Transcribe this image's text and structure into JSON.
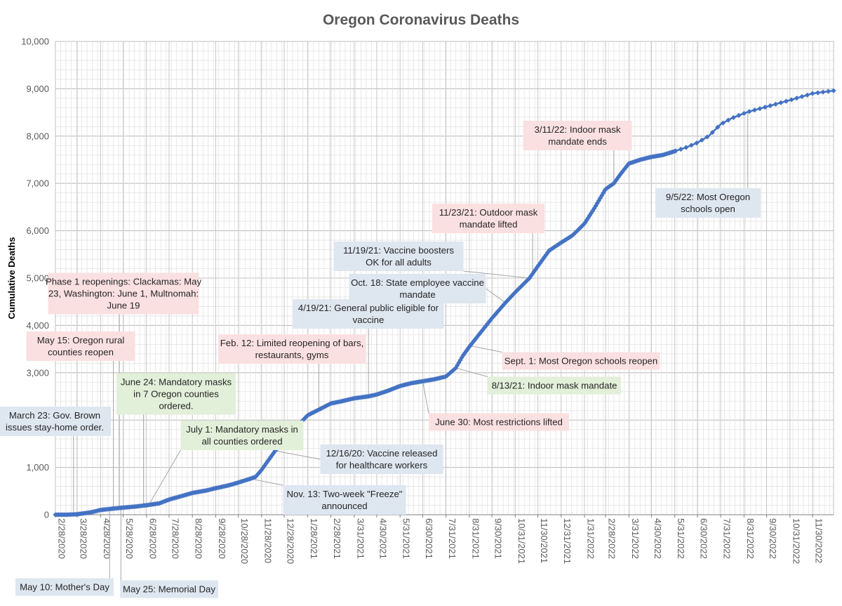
{
  "chart_data": {
    "type": "line",
    "title": "Oregon Coronavirus Deaths",
    "xlabel": "",
    "ylabel": "Cumulative Deaths",
    "ylim": [
      0,
      10000
    ],
    "xlim": [
      "2020-02-28",
      "2022-12-28"
    ],
    "grid": true,
    "legend": "none",
    "series_color": "#4472C4",
    "y_ticks": [
      0,
      1000,
      2000,
      3000,
      4000,
      5000,
      6000,
      7000,
      8000,
      9000,
      10000
    ],
    "y_tick_labels": [
      "0",
      "1,000",
      "2,000",
      "3,000",
      "4,000",
      "5,000",
      "6,000",
      "7,000",
      "8,000",
      "9,000",
      "10,000"
    ],
    "x_tick_labels": [
      "2/28/2020",
      "3/28/2020",
      "4/28/2020",
      "5/28/2020",
      "6/28/2020",
      "7/28/2020",
      "8/28/2020",
      "9/28/2020",
      "10/28/2020",
      "11/28/2020",
      "12/28/2020",
      "1/28/2021",
      "2/28/2021",
      "3/31/2021",
      "4/30/2021",
      "5/31/2021",
      "6/30/2021",
      "7/31/2021",
      "8/31/2021",
      "9/30/2021",
      "10/31/2021",
      "11/30/2021",
      "12/31/2021",
      "1/31/2022",
      "2/28/2022",
      "3/31/2022",
      "4/30/2022",
      "5/31/2022",
      "6/30/2022",
      "7/31/2022",
      "8/31/2022",
      "9/30/2022",
      "10/31/2022",
      "11/30/2022"
    ],
    "x_tick_dates": [
      "2020-02-28",
      "2020-03-28",
      "2020-04-28",
      "2020-05-28",
      "2020-06-28",
      "2020-07-28",
      "2020-08-28",
      "2020-09-28",
      "2020-10-28",
      "2020-11-28",
      "2020-12-28",
      "2021-01-28",
      "2021-02-28",
      "2021-03-31",
      "2021-04-30",
      "2021-05-31",
      "2021-06-30",
      "2021-07-31",
      "2021-08-31",
      "2021-09-30",
      "2021-10-31",
      "2021-11-30",
      "2021-12-31",
      "2022-01-31",
      "2022-02-28",
      "2022-03-31",
      "2022-04-30",
      "2022-05-31",
      "2022-06-30",
      "2022-07-31",
      "2022-08-31",
      "2022-09-30",
      "2022-10-31",
      "2022-11-30"
    ],
    "curve": [
      [
        "2020-02-28",
        0
      ],
      [
        "2020-03-14",
        0
      ],
      [
        "2020-03-28",
        10
      ],
      [
        "2020-04-15",
        50
      ],
      [
        "2020-04-28",
        100
      ],
      [
        "2020-05-15",
        130
      ],
      [
        "2020-05-28",
        150
      ],
      [
        "2020-06-15",
        175
      ],
      [
        "2020-06-28",
        200
      ],
      [
        "2020-07-15",
        240
      ],
      [
        "2020-07-28",
        320
      ],
      [
        "2020-08-15",
        400
      ],
      [
        "2020-08-28",
        460
      ],
      [
        "2020-09-15",
        510
      ],
      [
        "2020-09-28",
        560
      ],
      [
        "2020-10-15",
        620
      ],
      [
        "2020-10-28",
        680
      ],
      [
        "2020-11-13",
        760
      ],
      [
        "2020-11-20",
        800
      ],
      [
        "2020-11-28",
        950
      ],
      [
        "2020-12-07",
        1150
      ],
      [
        "2020-12-16",
        1350
      ],
      [
        "2020-12-28",
        1550
      ],
      [
        "2021-01-15",
        1880
      ],
      [
        "2021-01-28",
        2100
      ],
      [
        "2021-02-12",
        2220
      ],
      [
        "2021-02-28",
        2350
      ],
      [
        "2021-03-15",
        2400
      ],
      [
        "2021-03-31",
        2460
      ],
      [
        "2021-04-19",
        2500
      ],
      [
        "2021-04-30",
        2540
      ],
      [
        "2021-05-15",
        2620
      ],
      [
        "2021-05-31",
        2720
      ],
      [
        "2021-06-15",
        2780
      ],
      [
        "2021-06-30",
        2820
      ],
      [
        "2021-07-15",
        2860
      ],
      [
        "2021-07-31",
        2920
      ],
      [
        "2021-08-13",
        3100
      ],
      [
        "2021-08-22",
        3350
      ],
      [
        "2021-08-31",
        3550
      ],
      [
        "2021-09-15",
        3850
      ],
      [
        "2021-09-30",
        4150
      ],
      [
        "2021-10-18",
        4480
      ],
      [
        "2021-10-31",
        4700
      ],
      [
        "2021-11-19",
        5000
      ],
      [
        "2021-11-30",
        5250
      ],
      [
        "2021-12-15",
        5580
      ],
      [
        "2021-12-31",
        5750
      ],
      [
        "2022-01-15",
        5900
      ],
      [
        "2022-01-31",
        6150
      ],
      [
        "2022-02-14",
        6500
      ],
      [
        "2022-02-28",
        6880
      ],
      [
        "2022-03-11",
        7000
      ],
      [
        "2022-03-20",
        7200
      ],
      [
        "2022-03-31",
        7420
      ],
      [
        "2022-04-15",
        7500
      ],
      [
        "2022-04-30",
        7560
      ],
      [
        "2022-05-15",
        7600
      ],
      [
        "2022-05-31",
        7680
      ],
      [
        "2022-06-15",
        7760
      ],
      [
        "2022-06-30",
        7860
      ],
      [
        "2022-07-15",
        8000
      ],
      [
        "2022-07-31",
        8250
      ],
      [
        "2022-08-15",
        8380
      ],
      [
        "2022-08-31",
        8480
      ],
      [
        "2022-09-05",
        8510
      ],
      [
        "2022-09-30",
        8620
      ],
      [
        "2022-10-31",
        8760
      ],
      [
        "2022-11-30",
        8900
      ],
      [
        "2022-12-28",
        8960
      ]
    ],
    "annotations": [
      {
        "text": [
          "March 23: Gov. Brown",
          "issues stay-home order."
        ],
        "date": "2020-03-23",
        "fill": "#DEE6F0"
      },
      {
        "text": [
          "May 10: Mother's Day"
        ],
        "date": "2020-05-10",
        "fill": "#DEE6F0"
      },
      {
        "text": [
          "May 15: Oregon rural",
          "counties reopen"
        ],
        "date": "2020-05-15",
        "fill": "#FBE0E1"
      },
      {
        "text": [
          "Phase 1 reopenings: Clackamas: May",
          "23, Washington: June 1, Multnomah:",
          "June 19"
        ],
        "date": "2020-05-23",
        "fill": "#FBE0E1"
      },
      {
        "text": [
          "May 25: Memorial Day"
        ],
        "date": "2020-05-25",
        "fill": "#DEE6F0"
      },
      {
        "text": [
          "June 24: Mandatory masks",
          "in 7 Oregon counties",
          "ordered."
        ],
        "date": "2020-06-24",
        "fill": "#E2EFD9"
      },
      {
        "text": [
          "July 1: Mandatory masks in",
          "all counties ordered"
        ],
        "date": "2020-07-01",
        "fill": "#E2EFD9"
      },
      {
        "text": [
          "Nov. 13: Two-week \"Freeze\"",
          "announced"
        ],
        "date": "2020-11-13",
        "fill": "#DEE6F0"
      },
      {
        "text": [
          "12/16/20: Vaccine released",
          "for healthcare workers"
        ],
        "date": "2020-12-16",
        "fill": "#DEE6F0"
      },
      {
        "text": [
          "Feb. 12: Limited reopening of bars,",
          "restaurants, gyms"
        ],
        "date": "2021-02-12",
        "fill": "#FBE0E1"
      },
      {
        "text": [
          "4/19/21: General public eligible for",
          "vaccine"
        ],
        "date": "2021-04-19",
        "fill": "#DEE6F0"
      },
      {
        "text": [
          "June 30: Most restrictions lifted"
        ],
        "date": "2021-06-30",
        "fill": "#FBE0E1"
      },
      {
        "text": [
          "8/13/21: Indoor mask mandate"
        ],
        "date": "2021-08-13",
        "fill": "#E2EFD9"
      },
      {
        "text": [
          "Sept. 1: Most Oregon schools reopen"
        ],
        "date": "2021-09-01",
        "fill": "#FBE0E1"
      },
      {
        "text": [
          "Oct. 18: State employee vaccine",
          "mandate"
        ],
        "date": "2021-10-18",
        "fill": "#DEE6F0"
      },
      {
        "text": [
          "11/19/21: Vaccine boosters",
          "OK for all adults"
        ],
        "date": "2021-11-19",
        "fill": "#DEE6F0"
      },
      {
        "text": [
          "11/23/21: Outdoor mask",
          "mandate lifted"
        ],
        "date": "2021-11-23",
        "fill": "#FBE0E1"
      },
      {
        "text": [
          "3/11/22: Indoor mask",
          "mandate ends"
        ],
        "date": "2022-03-11",
        "fill": "#FBE0E1"
      },
      {
        "text": [
          "9/5/22: Most Oregon",
          "schools open"
        ],
        "date": "2022-09-05",
        "fill": "#DEE6F0"
      }
    ]
  }
}
